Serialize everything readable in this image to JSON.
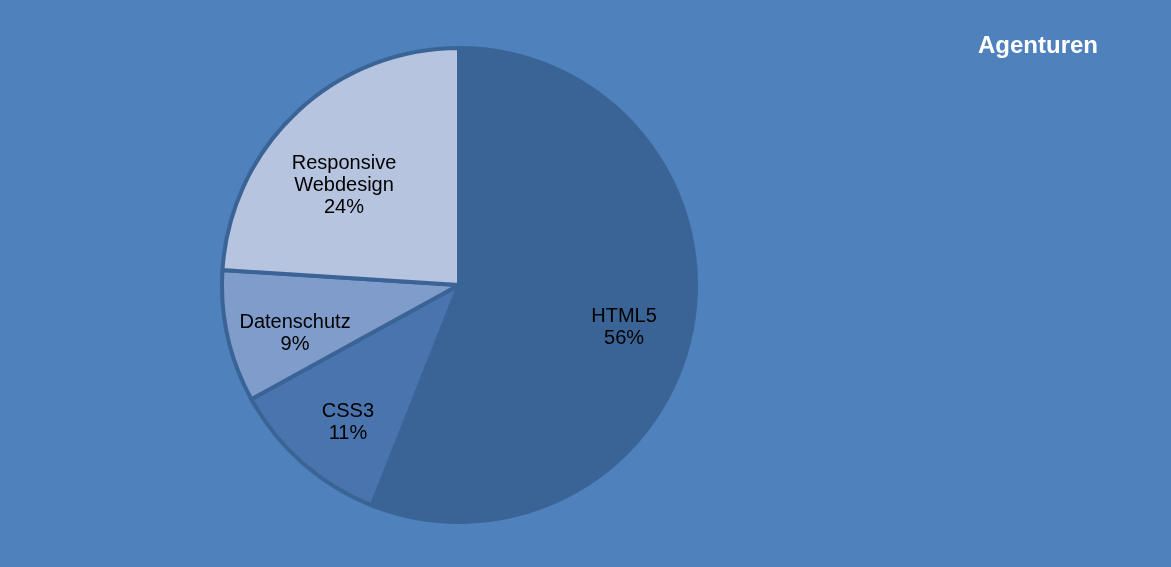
{
  "chart_data": {
    "type": "pie",
    "title": "Agenturen",
    "categories": [
      "HTML5",
      "CSS3",
      "Datenschutz",
      "Responsive Webdesign"
    ],
    "values": [
      56,
      11,
      9,
      24
    ],
    "value_labels": [
      "56%",
      "11%",
      "9%",
      "24%"
    ],
    "colors": [
      "#3b6496",
      "#4a74ae",
      "#7f9ccb",
      "#b6c4df"
    ],
    "legend": false
  }
}
